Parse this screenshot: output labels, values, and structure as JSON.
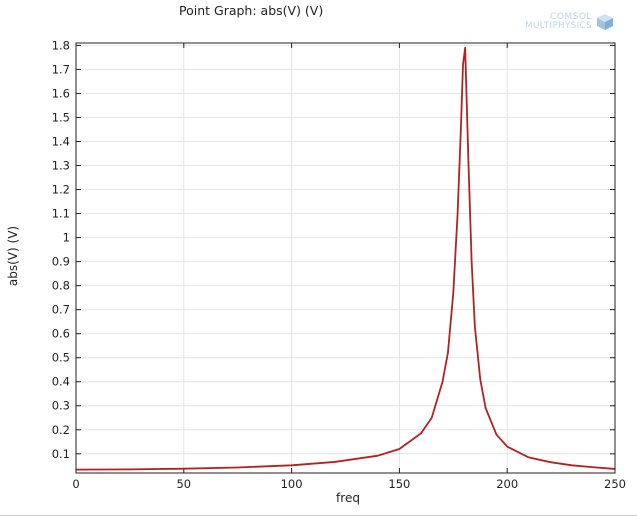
{
  "chart_data": {
    "type": "line",
    "title": "Point Graph: abs(V) (V)",
    "xlabel": "freq",
    "ylabel": "abs(V) (V)",
    "xlim": [
      0,
      250
    ],
    "ylim": [
      0.02,
      1.81
    ],
    "grid": true,
    "legend": "none",
    "x_ticks": [
      "0",
      "50",
      "100",
      "150",
      "200",
      "250"
    ],
    "x_tick_values": [
      0,
      50,
      100,
      150,
      200,
      250
    ],
    "y_ticks": [
      "0.1",
      "0.2",
      "0.3",
      "0.4",
      "0.5",
      "0.6",
      "0.7",
      "0.8",
      "0.9",
      "1",
      "1.1",
      "1.2",
      "1.3",
      "1.4",
      "1.5",
      "1.6",
      "1.7",
      "1.8"
    ],
    "y_tick_values": [
      0.1,
      0.2,
      0.3,
      0.4,
      0.5,
      0.6,
      0.7,
      0.8,
      0.9,
      1.0,
      1.1,
      1.2,
      1.3,
      1.4,
      1.5,
      1.6,
      1.7,
      1.8
    ],
    "series": [
      {
        "color": "#b22222",
        "x": [
          0,
          25,
          50,
          75,
          100,
          120,
          140,
          150,
          160,
          165,
          170,
          172.5,
          175,
          177,
          178.5,
          179.5,
          180.5,
          182,
          183.5,
          185,
          187.5,
          190,
          195,
          200,
          210,
          220,
          230,
          240,
          250
        ],
        "y": [
          0.034,
          0.035,
          0.038,
          0.043,
          0.052,
          0.066,
          0.092,
          0.12,
          0.185,
          0.25,
          0.4,
          0.52,
          0.77,
          1.1,
          1.45,
          1.72,
          1.79,
          1.32,
          0.9,
          0.63,
          0.41,
          0.29,
          0.18,
          0.13,
          0.085,
          0.065,
          0.052,
          0.044,
          0.037
        ]
      }
    ]
  },
  "logo": {
    "line1": "COMSOL",
    "line2": "MULTIPHYSICS"
  }
}
